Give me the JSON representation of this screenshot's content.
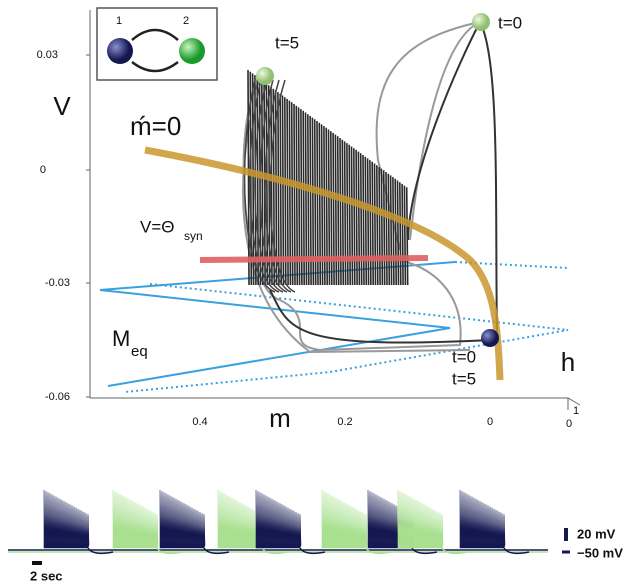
{
  "inset": {
    "node_1": "1",
    "node_2": "2"
  },
  "axes": {
    "v_label": "V",
    "m_label": "m",
    "h_label": "h",
    "v_ticks": [
      "0.03",
      "0",
      "-0.03",
      "-0.06"
    ],
    "m_ticks": [
      "0.4",
      "0.2",
      "0"
    ],
    "h_ticks": [
      "1",
      "0"
    ]
  },
  "annotations": {
    "nullcline": "ḿ=0",
    "threshold": "V=Θ",
    "threshold_sub": "syn",
    "manifold": "M",
    "manifold_sub": "eq",
    "t5_top": "t=5",
    "t0_top": "t=0",
    "t0_bottom": "t=0",
    "t5_bottom": "t=5"
  },
  "traces": {
    "scale_v": "20 mV",
    "rest_v": "−50 mV",
    "scale_t": "2 sec"
  }
}
